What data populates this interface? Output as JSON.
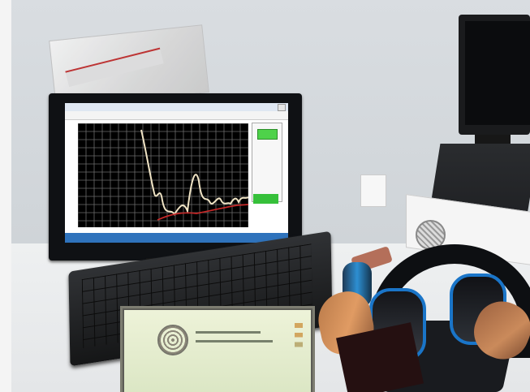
{
  "scene": {
    "colors": {
      "wall": "#d9dde1",
      "desk": "#e7e9eb",
      "monitor_frame": "#0f1114",
      "plot_background": "#000000",
      "signal_line": "#f0e4c5",
      "threshold_line": "#c62828",
      "indicator_green": "#4ed24a",
      "taskbar": "#2f73bc",
      "headphone_accent": "#1a75c8"
    },
    "icons": {
      "window_close": "close-icon",
      "instrument_logo": "circular-logo-icon",
      "cooling_fan": "fan-icon"
    }
  }
}
